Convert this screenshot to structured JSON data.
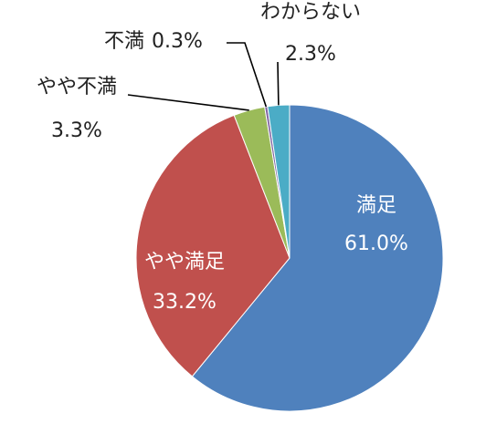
{
  "chart_data": {
    "type": "pie",
    "title": "",
    "slices": [
      {
        "name": "満足",
        "value": 61.0,
        "label": "61.0%",
        "color": "#4F81BD"
      },
      {
        "name": "やや満足",
        "value": 33.2,
        "label": "33.2%",
        "color": "#C0504D"
      },
      {
        "name": "やや不満",
        "value": 3.3,
        "label": "3.3%",
        "color": "#9BBB59"
      },
      {
        "name": "不満",
        "value": 0.3,
        "label": "0.3%",
        "color": "#8064A2"
      },
      {
        "name": "わからない",
        "value": 2.3,
        "label": "2.3%",
        "color": "#4BACC6"
      }
    ],
    "start_angle": "12 o'clock",
    "direction": "clockwise",
    "labels": "category name and percentage",
    "legend": "none"
  }
}
